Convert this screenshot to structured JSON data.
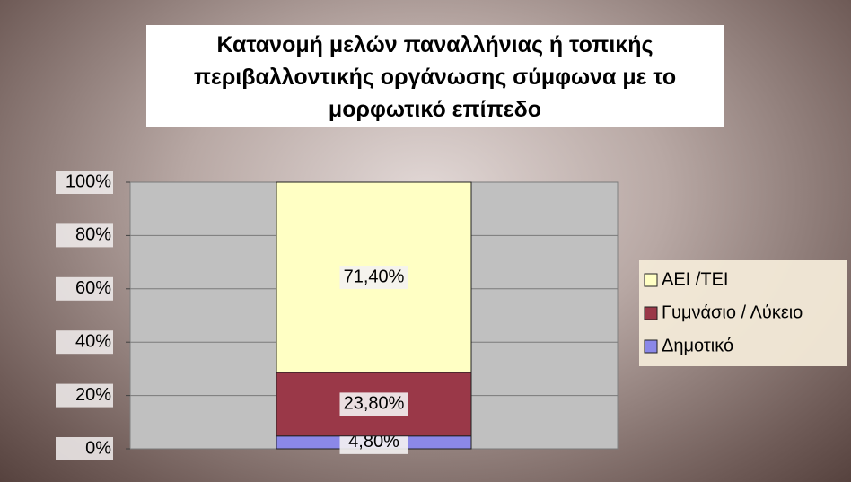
{
  "chart_data": {
    "type": "stacked_bar",
    "title": "Κατανομή μελών παναλλήνιας ή τοπικής περιβαλλοντικής οργάνωσης σύμφωνα με το μορφωτικό επίπεδο",
    "categories": [
      null
    ],
    "series": [
      {
        "name": "Δημοτικό",
        "color": "#8b88e8",
        "values": [
          4.8
        ],
        "value_labels": [
          "4,80%"
        ]
      },
      {
        "name": "Γυμνάσιο / Λύκειο",
        "color": "#9a3848",
        "values": [
          23.8
        ],
        "value_labels": [
          "23,80%"
        ]
      },
      {
        "name": "ΑΕΙ /ΤΕΙ",
        "color": "#ffffc4",
        "values": [
          71.4
        ],
        "value_labels": [
          "71,40%"
        ]
      }
    ],
    "ylim": [
      0,
      100
    ],
    "yticks": [
      {
        "value": 0,
        "label": "0%"
      },
      {
        "value": 20,
        "label": "20%"
      },
      {
        "value": 40,
        "label": "40%"
      },
      {
        "value": 60,
        "label": "60%"
      },
      {
        "value": 80,
        "label": "80%"
      },
      {
        "value": 100,
        "label": "100%"
      }
    ],
    "grid": true,
    "legend": "right"
  }
}
